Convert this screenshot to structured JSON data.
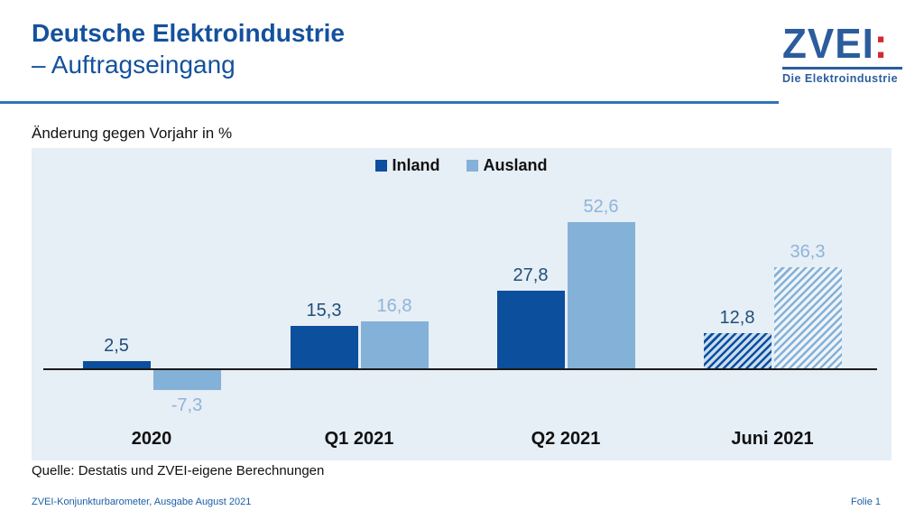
{
  "header": {
    "title_line1": "Deutsche Elektroindustrie",
    "title_line2": "– Auftragseingang",
    "logo": {
      "word": "ZVEI",
      "colon": ":",
      "tagline": "Die Elektroindustrie"
    }
  },
  "subtitle": "Änderung gegen Vorjahr in %",
  "chart_data": {
    "type": "bar",
    "title": "Deutsche Elektroindustrie – Auftragseingang",
    "ylabel": "Änderung gegen Vorjahr in %",
    "categories": [
      "2020",
      "Q1 2021",
      "Q2 2021",
      "Juni 2021"
    ],
    "hatched_categories": [
      false,
      false,
      false,
      true
    ],
    "series": [
      {
        "name": "Inland",
        "color": "#0b4f9d",
        "label_color": "#1f4e79",
        "hatch_gap_color": "#c9dcee",
        "values": [
          2.5,
          15.3,
          27.8,
          12.8
        ],
        "labels": [
          "2,5",
          "15,3",
          "27,8",
          "12,8"
        ]
      },
      {
        "name": "Ausland",
        "color": "#84b1d7",
        "label_color": "#8fb4da",
        "hatch_gap_color": "#eef4fa",
        "values": [
          -7.3,
          16.8,
          52.6,
          36.3
        ],
        "labels": [
          "-7,3",
          "16,8",
          "52,6",
          "36,3"
        ]
      }
    ],
    "ylim": [
      -20,
      60
    ],
    "grid": false,
    "legend_position": "top-center",
    "background_color": "#e6eef6"
  },
  "source": "Quelle: Destatis und ZVEI-eigene Berechnungen",
  "footer": {
    "left": "ZVEI-Konjunkturbarometer, Ausgabe August 2021",
    "right": "Folie 1"
  }
}
